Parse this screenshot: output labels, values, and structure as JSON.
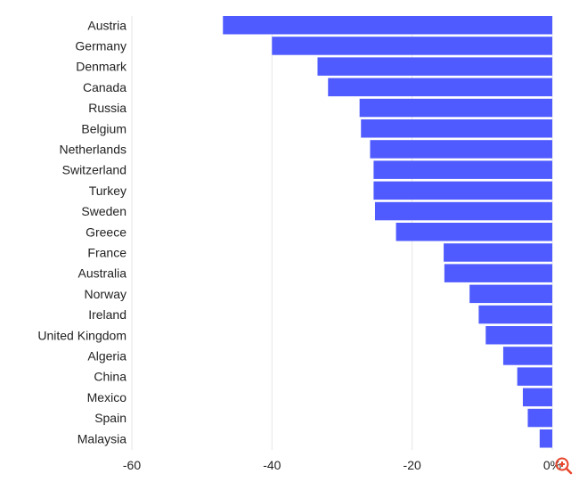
{
  "chart_data": {
    "type": "bar",
    "orientation": "horizontal",
    "categories": [
      "Austria",
      "Germany",
      "Denmark",
      "Canada",
      "Russia",
      "Belgium",
      "Netherlands",
      "Switzerland",
      "Turkey",
      "Sweden",
      "Greece",
      "France",
      "Australia",
      "Norway",
      "Ireland",
      "United Kingdom",
      "Algeria",
      "China",
      "Mexico",
      "Spain",
      "Malaysia"
    ],
    "values": [
      -47,
      -40,
      -33.5,
      -32,
      -27.5,
      -27.3,
      -26,
      -25.5,
      -25.5,
      -25.3,
      -22.3,
      -15.5,
      -15.4,
      -11.8,
      -10.5,
      -9.5,
      -7,
      -5,
      -4.2,
      -3.5,
      -1.8
    ],
    "xlim": [
      -60,
      0
    ],
    "xticks": [
      -60,
      -40,
      -20,
      0
    ],
    "tick_labels": [
      "-60",
      "-40",
      "-20",
      "0%"
    ],
    "grid": true,
    "bar_color": "#4f5bff",
    "title": "",
    "xlabel": "",
    "ylabel": ""
  },
  "controls": {
    "zoom_icon_color": "#e8452c"
  }
}
